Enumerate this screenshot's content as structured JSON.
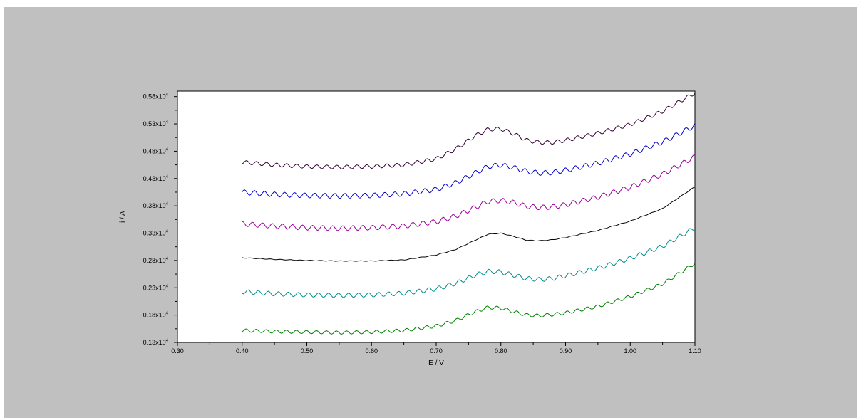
{
  "chart_data": {
    "type": "line",
    "xlabel": "E / V",
    "ylabel": "i / A",
    "xlim": [
      0.3,
      1.1
    ],
    "ylim": [
      0.13,
      0.59
    ],
    "x_ticks": [
      "0.30",
      "0.40",
      "0.50",
      "0.60",
      "0.70",
      "0.80",
      "0.90",
      "1.00",
      "1.10"
    ],
    "y_ticks": [
      {
        "mantissa": "0.13x10",
        "exp": "4"
      },
      {
        "mantissa": "0.18x10",
        "exp": "4"
      },
      {
        "mantissa": "0.23x10",
        "exp": "4"
      },
      {
        "mantissa": "0.28x10",
        "exp": "4"
      },
      {
        "mantissa": "0.33x10",
        "exp": "4"
      },
      {
        "mantissa": "0.38x10",
        "exp": "4"
      },
      {
        "mantissa": "0.43x10",
        "exp": "4"
      },
      {
        "mantissa": "0.48x10",
        "exp": "4"
      },
      {
        "mantissa": "0.53x10",
        "exp": "4"
      },
      {
        "mantissa": "0.58x10",
        "exp": "4"
      }
    ],
    "grid": false,
    "legend": "none",
    "series": [
      {
        "color": "#330033",
        "x": [
          0.4,
          0.45,
          0.5,
          0.55,
          0.6,
          0.65,
          0.7,
          0.73,
          0.76,
          0.78,
          0.8,
          0.82,
          0.84,
          0.86,
          0.88,
          0.9,
          0.95,
          1.0,
          1.05,
          1.1
        ],
        "y": [
          0.46,
          0.455,
          0.452,
          0.451,
          0.452,
          0.455,
          0.466,
          0.484,
          0.508,
          0.52,
          0.521,
          0.512,
          0.5,
          0.496,
          0.496,
          0.5,
          0.513,
          0.529,
          0.553,
          0.587
        ]
      },
      {
        "color": "#0000cc",
        "x": [
          0.4,
          0.45,
          0.5,
          0.55,
          0.6,
          0.65,
          0.7,
          0.73,
          0.76,
          0.78,
          0.8,
          0.82,
          0.84,
          0.86,
          0.88,
          0.9,
          0.95,
          1.0,
          1.05,
          1.1
        ],
        "y": [
          0.405,
          0.401,
          0.399,
          0.398,
          0.399,
          0.402,
          0.41,
          0.422,
          0.44,
          0.452,
          0.455,
          0.45,
          0.443,
          0.44,
          0.441,
          0.445,
          0.458,
          0.475,
          0.497,
          0.527
        ]
      },
      {
        "color": "#990099",
        "x": [
          0.4,
          0.45,
          0.5,
          0.55,
          0.6,
          0.65,
          0.7,
          0.73,
          0.76,
          0.78,
          0.8,
          0.82,
          0.84,
          0.86,
          0.88,
          0.9,
          0.95,
          1.0,
          1.05,
          1.1
        ],
        "y": [
          0.347,
          0.343,
          0.34,
          0.339,
          0.34,
          0.343,
          0.351,
          0.361,
          0.377,
          0.388,
          0.39,
          0.386,
          0.379,
          0.377,
          0.378,
          0.382,
          0.396,
          0.414,
          0.438,
          0.47
        ]
      },
      {
        "color": "#000000",
        "x": [
          0.4,
          0.45,
          0.5,
          0.55,
          0.6,
          0.65,
          0.7,
          0.73,
          0.76,
          0.78,
          0.8,
          0.82,
          0.84,
          0.86,
          0.88,
          0.9,
          0.95,
          1.0,
          1.05,
          1.1
        ],
        "y": [
          0.285,
          0.282,
          0.28,
          0.279,
          0.279,
          0.281,
          0.29,
          0.3,
          0.317,
          0.328,
          0.33,
          0.324,
          0.317,
          0.316,
          0.318,
          0.322,
          0.335,
          0.352,
          0.375,
          0.415
        ]
      },
      {
        "color": "#008b8b",
        "x": [
          0.4,
          0.45,
          0.5,
          0.55,
          0.6,
          0.65,
          0.7,
          0.73,
          0.76,
          0.78,
          0.8,
          0.82,
          0.84,
          0.86,
          0.88,
          0.9,
          0.95,
          1.0,
          1.05,
          1.1
        ],
        "y": [
          0.223,
          0.219,
          0.217,
          0.216,
          0.217,
          0.22,
          0.228,
          0.238,
          0.253,
          0.26,
          0.259,
          0.253,
          0.247,
          0.245,
          0.247,
          0.252,
          0.266,
          0.284,
          0.306,
          0.34
        ]
      },
      {
        "color": "#008000",
        "x": [
          0.4,
          0.45,
          0.5,
          0.55,
          0.6,
          0.65,
          0.7,
          0.73,
          0.76,
          0.78,
          0.8,
          0.82,
          0.84,
          0.86,
          0.88,
          0.9,
          0.95,
          1.0,
          1.05,
          1.1
        ],
        "y": [
          0.152,
          0.15,
          0.149,
          0.148,
          0.149,
          0.152,
          0.16,
          0.17,
          0.186,
          0.194,
          0.193,
          0.186,
          0.18,
          0.179,
          0.181,
          0.184,
          0.196,
          0.214,
          0.237,
          0.275
        ]
      }
    ]
  }
}
